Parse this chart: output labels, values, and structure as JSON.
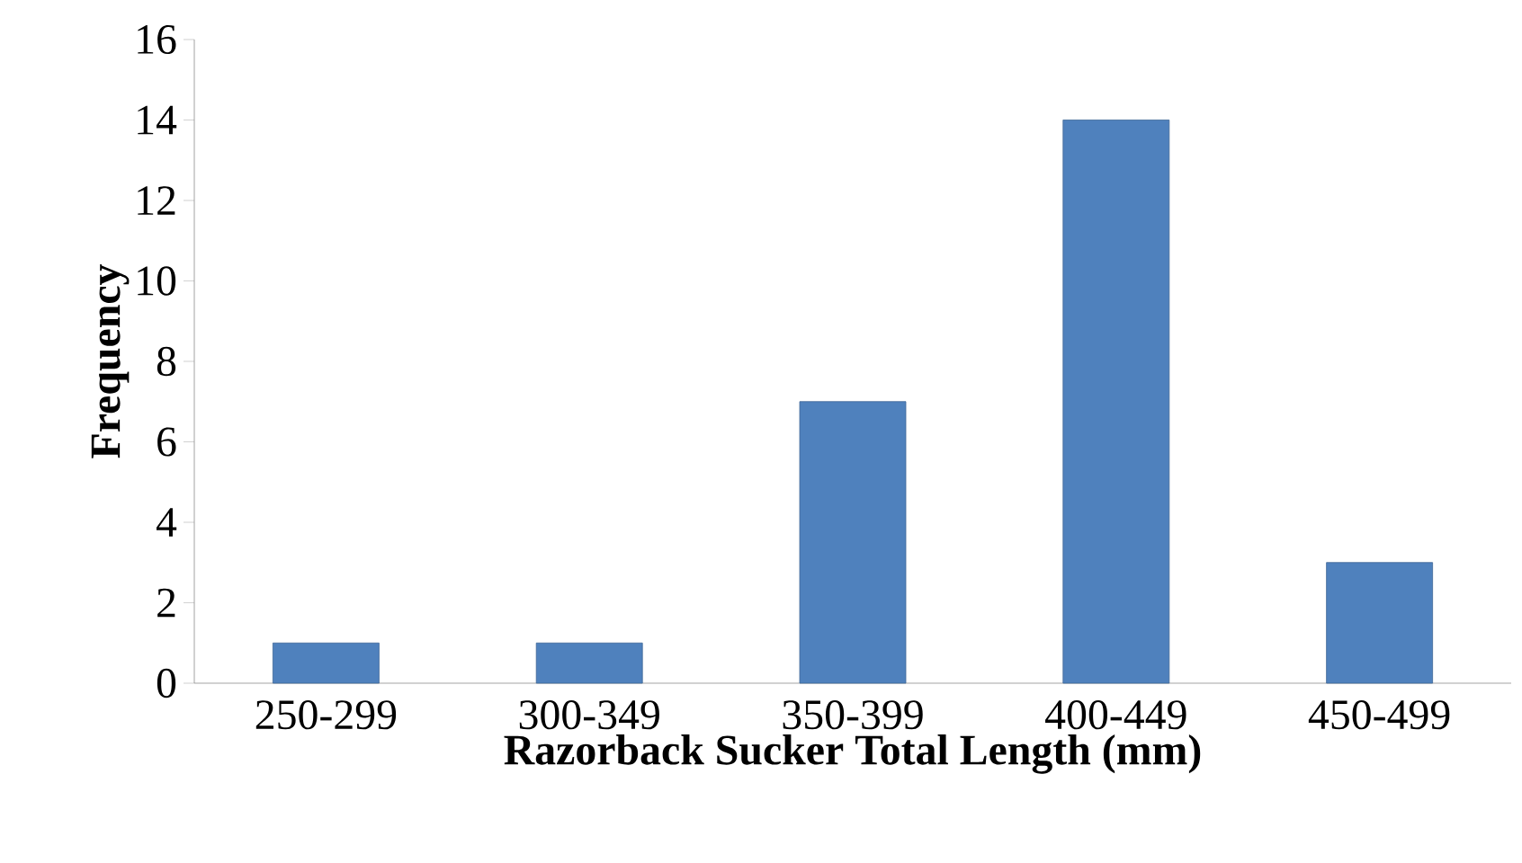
{
  "chart_data": {
    "type": "bar",
    "xlabel": "Razorback Sucker Total Length (mm)",
    "ylabel": "Frequency",
    "categories": [
      "250-299",
      "300-349",
      "350-399",
      "400-449",
      "450-499"
    ],
    "values": [
      1,
      1,
      7,
      14,
      3
    ],
    "color": "#4f81bd",
    "ylim": [
      0,
      16
    ],
    "yticks": [
      0,
      2,
      4,
      6,
      8,
      10,
      12,
      14,
      16
    ]
  }
}
